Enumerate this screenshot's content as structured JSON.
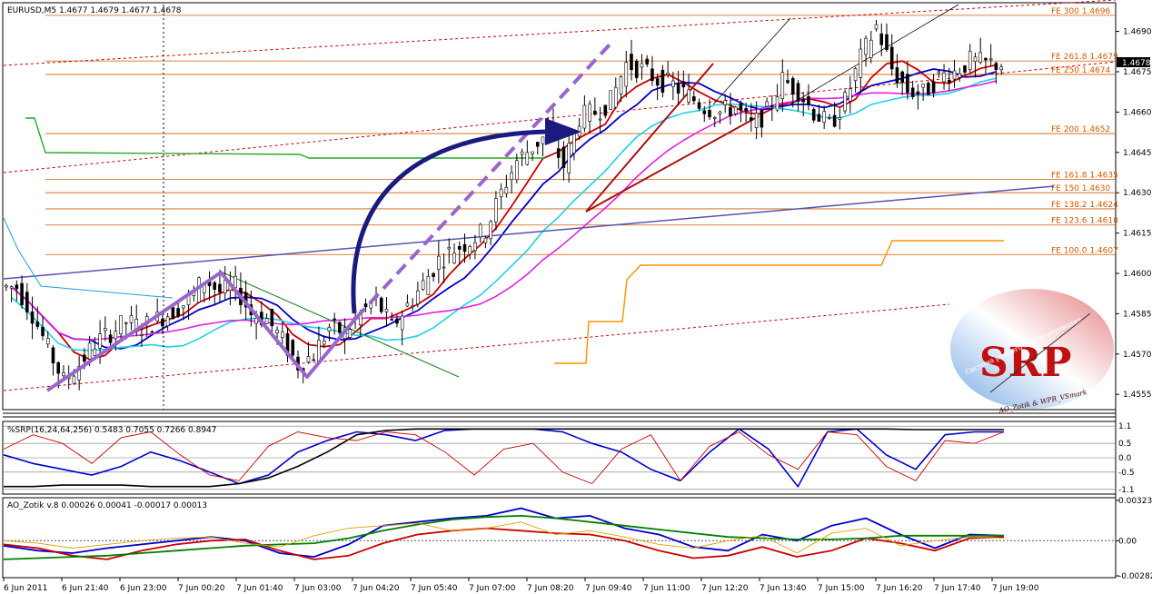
{
  "chart_data": [
    {
      "type": "candlestick",
      "title": "EURUSD,M5  1.4677 1.4679 1.4677 1.4678",
      "current_price": "1.4678",
      "price_axis": {
        "ylim": [
          1.455,
          1.47
        ],
        "ticks": [
          "1.4690",
          "1.4675",
          "1.4660",
          "1.4645",
          "1.4630",
          "1.4615",
          "1.4600",
          "1.4585",
          "1.4570",
          "1.4555"
        ]
      },
      "time_axis": [
        "6 Jun 2011",
        "6 Jun 21:40",
        "6 Jun 23:00",
        "7 Jun 00:20",
        "7 Jun 01:40",
        "7 Jun 03:00",
        "7 Jun 04:20",
        "7 Jun 05:40",
        "7 Jun 07:00",
        "7 Jun 08:20",
        "7 Jun 09:40",
        "7 Jun 11:00",
        "7 Jun 12:20",
        "7 Jun 13:40",
        "7 Jun 15:00",
        "7 Jun 16:20",
        "7 Jun 17:40",
        "7 Jun 19:00"
      ],
      "fib_extensions": [
        {
          "label": "FE 300",
          "value": 1.4696
        },
        {
          "label": "FE 261.8",
          "value": 1.4679
        },
        {
          "label": "FE 250",
          "value": 1.4674
        },
        {
          "label": "FE 200",
          "value": 1.4652
        },
        {
          "label": "FE 161.8",
          "value": 1.4635
        },
        {
          "label": "FE 150",
          "value": 1.463
        },
        {
          "label": "FE 138.2",
          "value": 1.4624
        },
        {
          "label": "FE 123.6",
          "value": 1.4618
        },
        {
          "label": "FE 100.0",
          "value": 1.4607
        }
      ],
      "close_path": [
        1.4595,
        1.4585,
        1.4572,
        1.456,
        1.4566,
        1.4574,
        1.4578,
        1.4582,
        1.458,
        1.4583,
        1.4586,
        1.459,
        1.4598,
        1.4593,
        1.4595,
        1.4585,
        1.4583,
        1.4575,
        1.4566,
        1.457,
        1.458,
        1.4578,
        1.4585,
        1.459,
        1.458,
        1.4588,
        1.4596,
        1.4605,
        1.4609,
        1.4612,
        1.4616,
        1.463,
        1.4642,
        1.4647,
        1.4652,
        1.464,
        1.4658,
        1.466,
        1.4664,
        1.4678,
        1.4676,
        1.4672,
        1.467,
        1.4666,
        1.4662,
        1.466,
        1.4662,
        1.4655,
        1.466,
        1.4672,
        1.4668,
        1.466,
        1.4655,
        1.4664,
        1.468,
        1.4692,
        1.4676,
        1.4668,
        1.4667,
        1.4673,
        1.4675,
        1.4679,
        1.4678,
        1.4678
      ],
      "watermark": {
        "text": "SRP",
        "ring_text_top": "Система раннего прогнозирования",
        "ring_text_bottom": "AO_Zotik & WPR_VSmark"
      }
    },
    {
      "type": "line",
      "title": "%SRP(16,24,64,256) 0.5483 0.7055 0.7266 0.8947",
      "levels": [
        "1.1",
        "0.5",
        "0.0",
        "-0.5",
        "-1.1"
      ],
      "ylim": [
        -1.2,
        1.2
      ],
      "series": [
        {
          "color": "#0000cc",
          "values": [
            0.1,
            -0.2,
            -0.4,
            -0.6,
            -0.3,
            0.2,
            -0.1,
            -0.5,
            -0.9,
            -0.6,
            0.2,
            0.6,
            0.9,
            0.8,
            0.6,
            0.95,
            1.0,
            1.0,
            1.0,
            0.9,
            0.5,
            0.2,
            -0.4,
            -0.8,
            0.2,
            1.0,
            0.3,
            -1.0,
            0.9,
            1.0,
            0.1,
            -0.4,
            0.8,
            0.9,
            0.9
          ]
        },
        {
          "color": "#000000",
          "values": [
            -1.0,
            -1.0,
            -0.95,
            -0.95,
            -0.95,
            -1.0,
            -1.0,
            -1.0,
            -0.9,
            -0.7,
            -0.3,
            0.2,
            0.8,
            0.95,
            1.0,
            1.0,
            1.0,
            1.0,
            1.0,
            1.0,
            1.0,
            1.0,
            1.0,
            1.0,
            1.0,
            1.0,
            1.0,
            1.0,
            1.0,
            1.0,
            1.0,
            0.98,
            0.98,
            0.98,
            0.98
          ]
        },
        {
          "color": "#cc0000",
          "values": [
            0.3,
            0.8,
            0.5,
            -0.2,
            0.7,
            0.9,
            0.1,
            -0.6,
            -0.8,
            0.4,
            0.9,
            0.7,
            0.6,
            0.9,
            0.8,
            0.2,
            -0.6,
            0.3,
            0.5,
            -0.5,
            -0.9,
            0.3,
            0.8,
            -0.8,
            0.4,
            0.9,
            0.1,
            -0.4,
            0.9,
            0.8,
            -0.3,
            -0.8,
            0.6,
            0.5,
            0.9
          ]
        }
      ]
    },
    {
      "type": "line",
      "title": "AO_Zotik v.8 0.00026 0.00041 -0.00017 0.00013",
      "ticks": [
        "0.00323",
        "0.00",
        "-0.00282"
      ],
      "ylim": [
        -0.00282,
        0.00323
      ],
      "series": [
        {
          "color": "#0000cc",
          "values": [
            -0.0004,
            -0.0008,
            -0.001,
            -0.0006,
            -0.0003,
            0.0,
            0.0003,
            0.0,
            -0.001,
            -0.0013,
            -0.0003,
            0.0012,
            0.0015,
            0.0018,
            0.002,
            0.0026,
            0.0018,
            0.002,
            0.001,
            0.0005,
            -0.0005,
            -0.0008,
            0.0005,
            0.0,
            0.0012,
            0.0018,
            0.0005,
            -0.0006,
            0.0005,
            0.0004
          ]
        },
        {
          "color": "#cc0000",
          "values": [
            -0.0003,
            -0.0006,
            -0.0012,
            -0.0015,
            -0.0008,
            -0.0003,
            0.0,
            0.0001,
            -0.0008,
            -0.0015,
            -0.0012,
            -0.0002,
            0.0005,
            0.0008,
            0.001,
            0.0008,
            0.0006,
            0.0005,
            0.0,
            -0.0008,
            -0.0014,
            -0.0012,
            -0.0005,
            -0.0013,
            -0.0008,
            0.0002,
            -0.0002,
            -0.0008,
            0.0002,
            0.0003
          ]
        },
        {
          "color": "#008000",
          "values": [
            -0.0015,
            -0.0014,
            -0.0013,
            -0.0012,
            -0.001,
            -0.0008,
            -0.0006,
            -0.0004,
            -0.0003,
            -0.0002,
            0.0002,
            0.0008,
            0.0013,
            0.0017,
            0.0019,
            0.002,
            0.0018,
            0.0015,
            0.0012,
            0.0009,
            0.0006,
            0.0003,
            0.0002,
            0.0001,
            0.0001,
            0.0002,
            0.0004,
            0.0004,
            0.0004,
            0.0004
          ]
        },
        {
          "color": "#e0a000",
          "values": [
            0.0,
            -0.0002,
            -0.0006,
            -0.0003,
            0.0,
            0.0002,
            0.0003,
            -0.0002,
            -0.0005,
            0.0004,
            0.001,
            0.0012,
            0.0014,
            0.0008,
            0.001,
            0.0015,
            0.0005,
            0.0008,
            0.0003,
            -0.0003,
            -0.0006,
            0.0,
            0.0004,
            -0.001,
            0.0006,
            0.001,
            -0.0004,
            0.0,
            0.0003,
            0.0002
          ]
        }
      ]
    }
  ],
  "colors": {
    "fe": "#d25a00",
    "ma_red": "#cc0000",
    "ma_blue": "#0000cc",
    "ma_cyan": "#20d0e8",
    "ma_magenta": "#e020e0",
    "arrow": "#1a1a80",
    "pattern": "#9966cc"
  }
}
